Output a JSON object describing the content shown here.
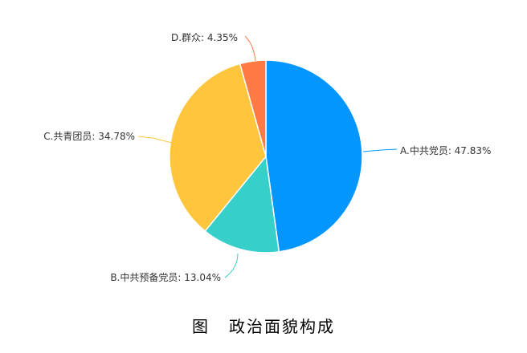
{
  "chart_data": {
    "type": "pie",
    "title": "",
    "slices": [
      {
        "label": "A.中共党员",
        "value": 47.83,
        "text": "A.中共党员: 47.83%",
        "color": "#0396FF"
      },
      {
        "label": "B.中共预备党员",
        "value": 13.04,
        "text": "B.中共预备党员: 13.04%",
        "color": "#36CFC9"
      },
      {
        "label": "C.共青团员",
        "value": 34.78,
        "text": "C.共青团员: 34.78%",
        "color": "#FFC53D"
      },
      {
        "label": "D.群众",
        "value": 4.35,
        "text": "D.群众: 4.35%",
        "color": "#FF7A45"
      }
    ],
    "start_angle": "top",
    "direction": "clockwise",
    "legend": "none"
  },
  "caption": {
    "figure": "图",
    "title": "政治面貌构成"
  }
}
